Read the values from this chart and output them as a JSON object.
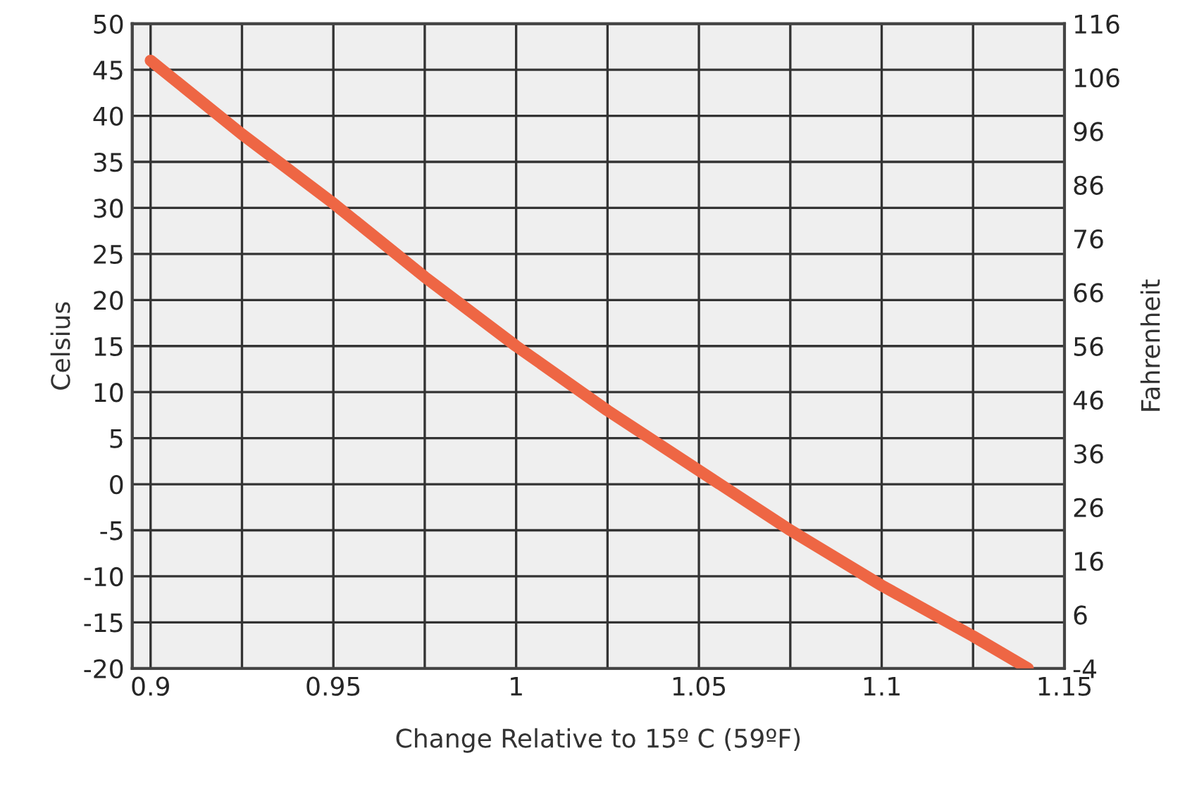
{
  "chart_data": {
    "type": "line",
    "xlabel": "Change Relative to 15º C (59ºF)",
    "ylabel": "Celsius",
    "y2label": "Fahrenheit",
    "x": [
      0.9,
      0.925,
      0.95,
      0.975,
      1.0,
      1.025,
      1.05,
      1.075,
      1.1,
      1.125,
      1.14
    ],
    "series": [
      {
        "color": "#ee6644",
        "values": [
          46,
          38,
          30.5,
          22.5,
          15,
          8,
          1.5,
          -5,
          -11,
          -16.5,
          -20
        ]
      }
    ],
    "xlim": [
      0.895,
      1.15
    ],
    "xticks": [
      0.9,
      {
        "value": 0.925,
        "label": null
      },
      0.95,
      {
        "value": 0.975,
        "label": null
      },
      1,
      {
        "value": 1.025,
        "label": null
      },
      1.05,
      {
        "value": 1.075,
        "label": null
      },
      1.1,
      {
        "value": 1.125,
        "label": null
      },
      1.15
    ],
    "ylim": [
      -20,
      50
    ],
    "yticks": [
      -20,
      -15,
      -10,
      -5,
      0,
      5,
      10,
      15,
      20,
      25,
      30,
      35,
      40,
      45,
      50
    ],
    "y2lim": [
      -4,
      116
    ],
    "y2ticks": [
      -4,
      6,
      16,
      26,
      36,
      46,
      56,
      66,
      76,
      86,
      96,
      106,
      116
    ],
    "grid": true,
    "marker": "none",
    "line_style": "solid"
  }
}
